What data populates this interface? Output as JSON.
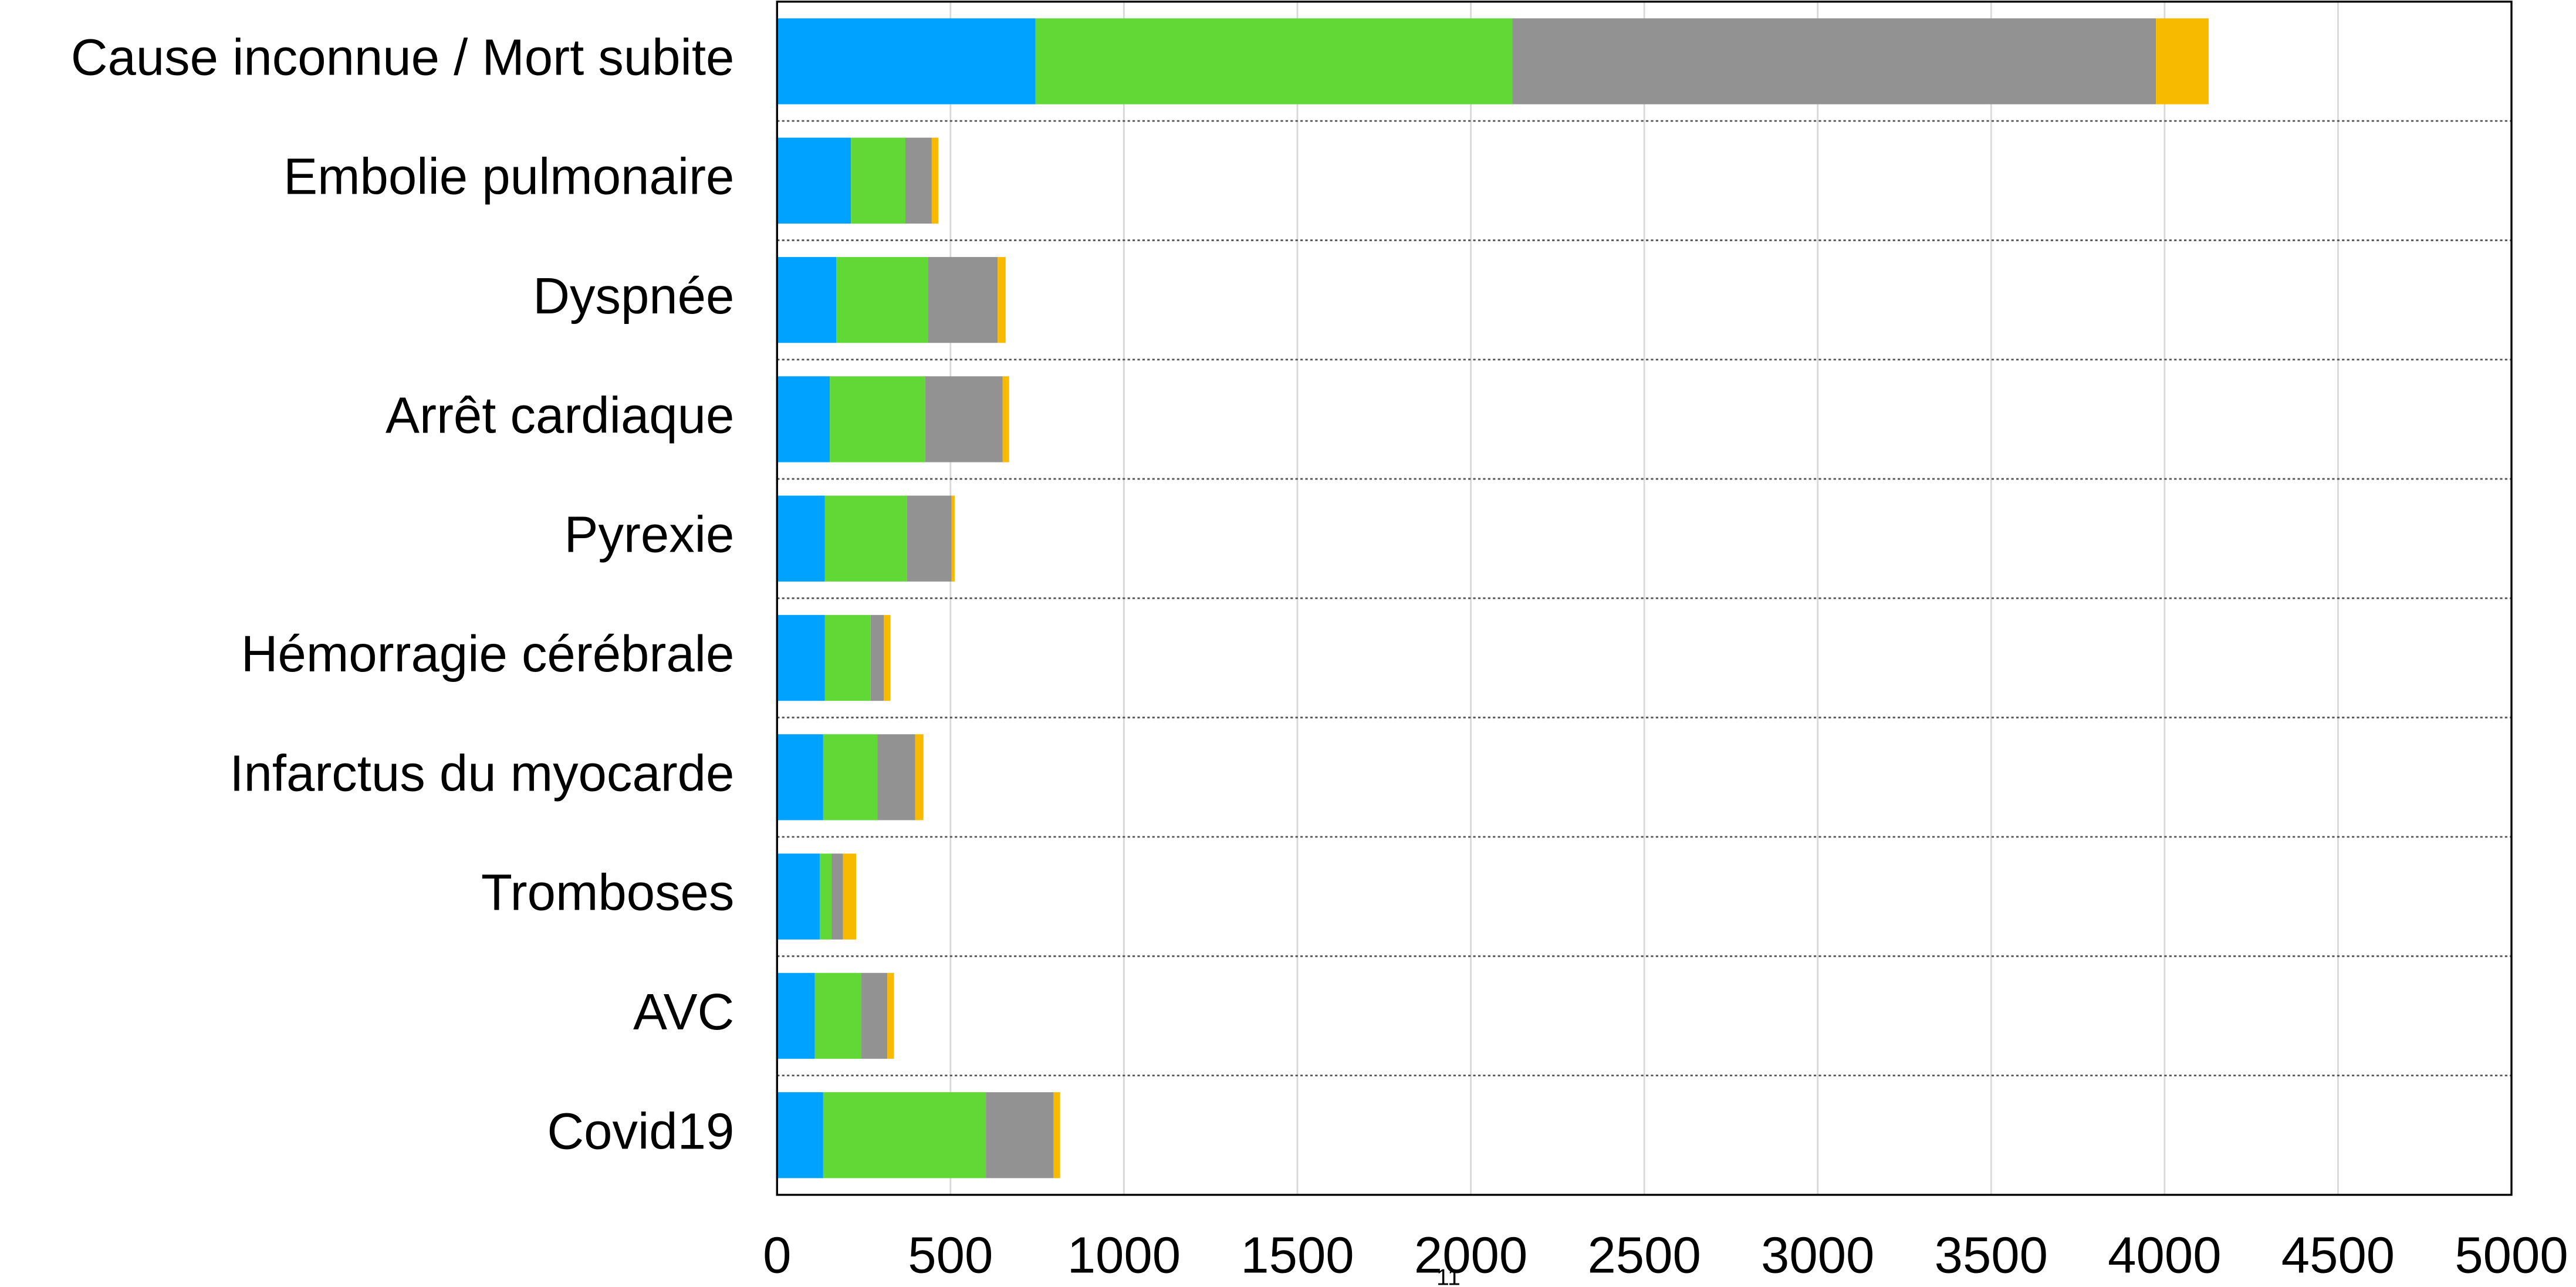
{
  "chart_data": {
    "type": "stacked-bar",
    "orientation": "horizontal",
    "categories": [
      "Cause inconnue / Mort subite",
      "Embolie pulmonaire",
      "Dyspnée",
      "Arrêt cardiaque",
      "Pyrexie",
      "Hémorragie cérébrale",
      "Infarctus du myocarde",
      "Tromboses",
      "AVC",
      "Covid19"
    ],
    "series": [
      {
        "color": "#00a2ff",
        "values": [
          745,
          213,
          171,
          152,
          138,
          138,
          133,
          123,
          109,
          133
        ]
      },
      {
        "color": "#61d836",
        "values": [
          1375,
          157,
          265,
          275,
          237,
          132,
          156,
          34,
          133,
          469
        ]
      },
      {
        "color": "#929292",
        "values": [
          1855,
          76,
          200,
          223,
          128,
          38,
          109,
          33,
          76,
          195
        ]
      },
      {
        "color": "#f8ba00",
        "values": [
          152,
          19,
          23,
          19,
          9,
          19,
          24,
          38,
          19,
          19
        ]
      }
    ],
    "xlim": [
      0,
      5000
    ],
    "xticks": [
      0,
      500,
      1000,
      1500,
      2000,
      2500,
      3000,
      3500,
      4000,
      4500,
      5000
    ],
    "grid": true,
    "annotation": "11"
  }
}
